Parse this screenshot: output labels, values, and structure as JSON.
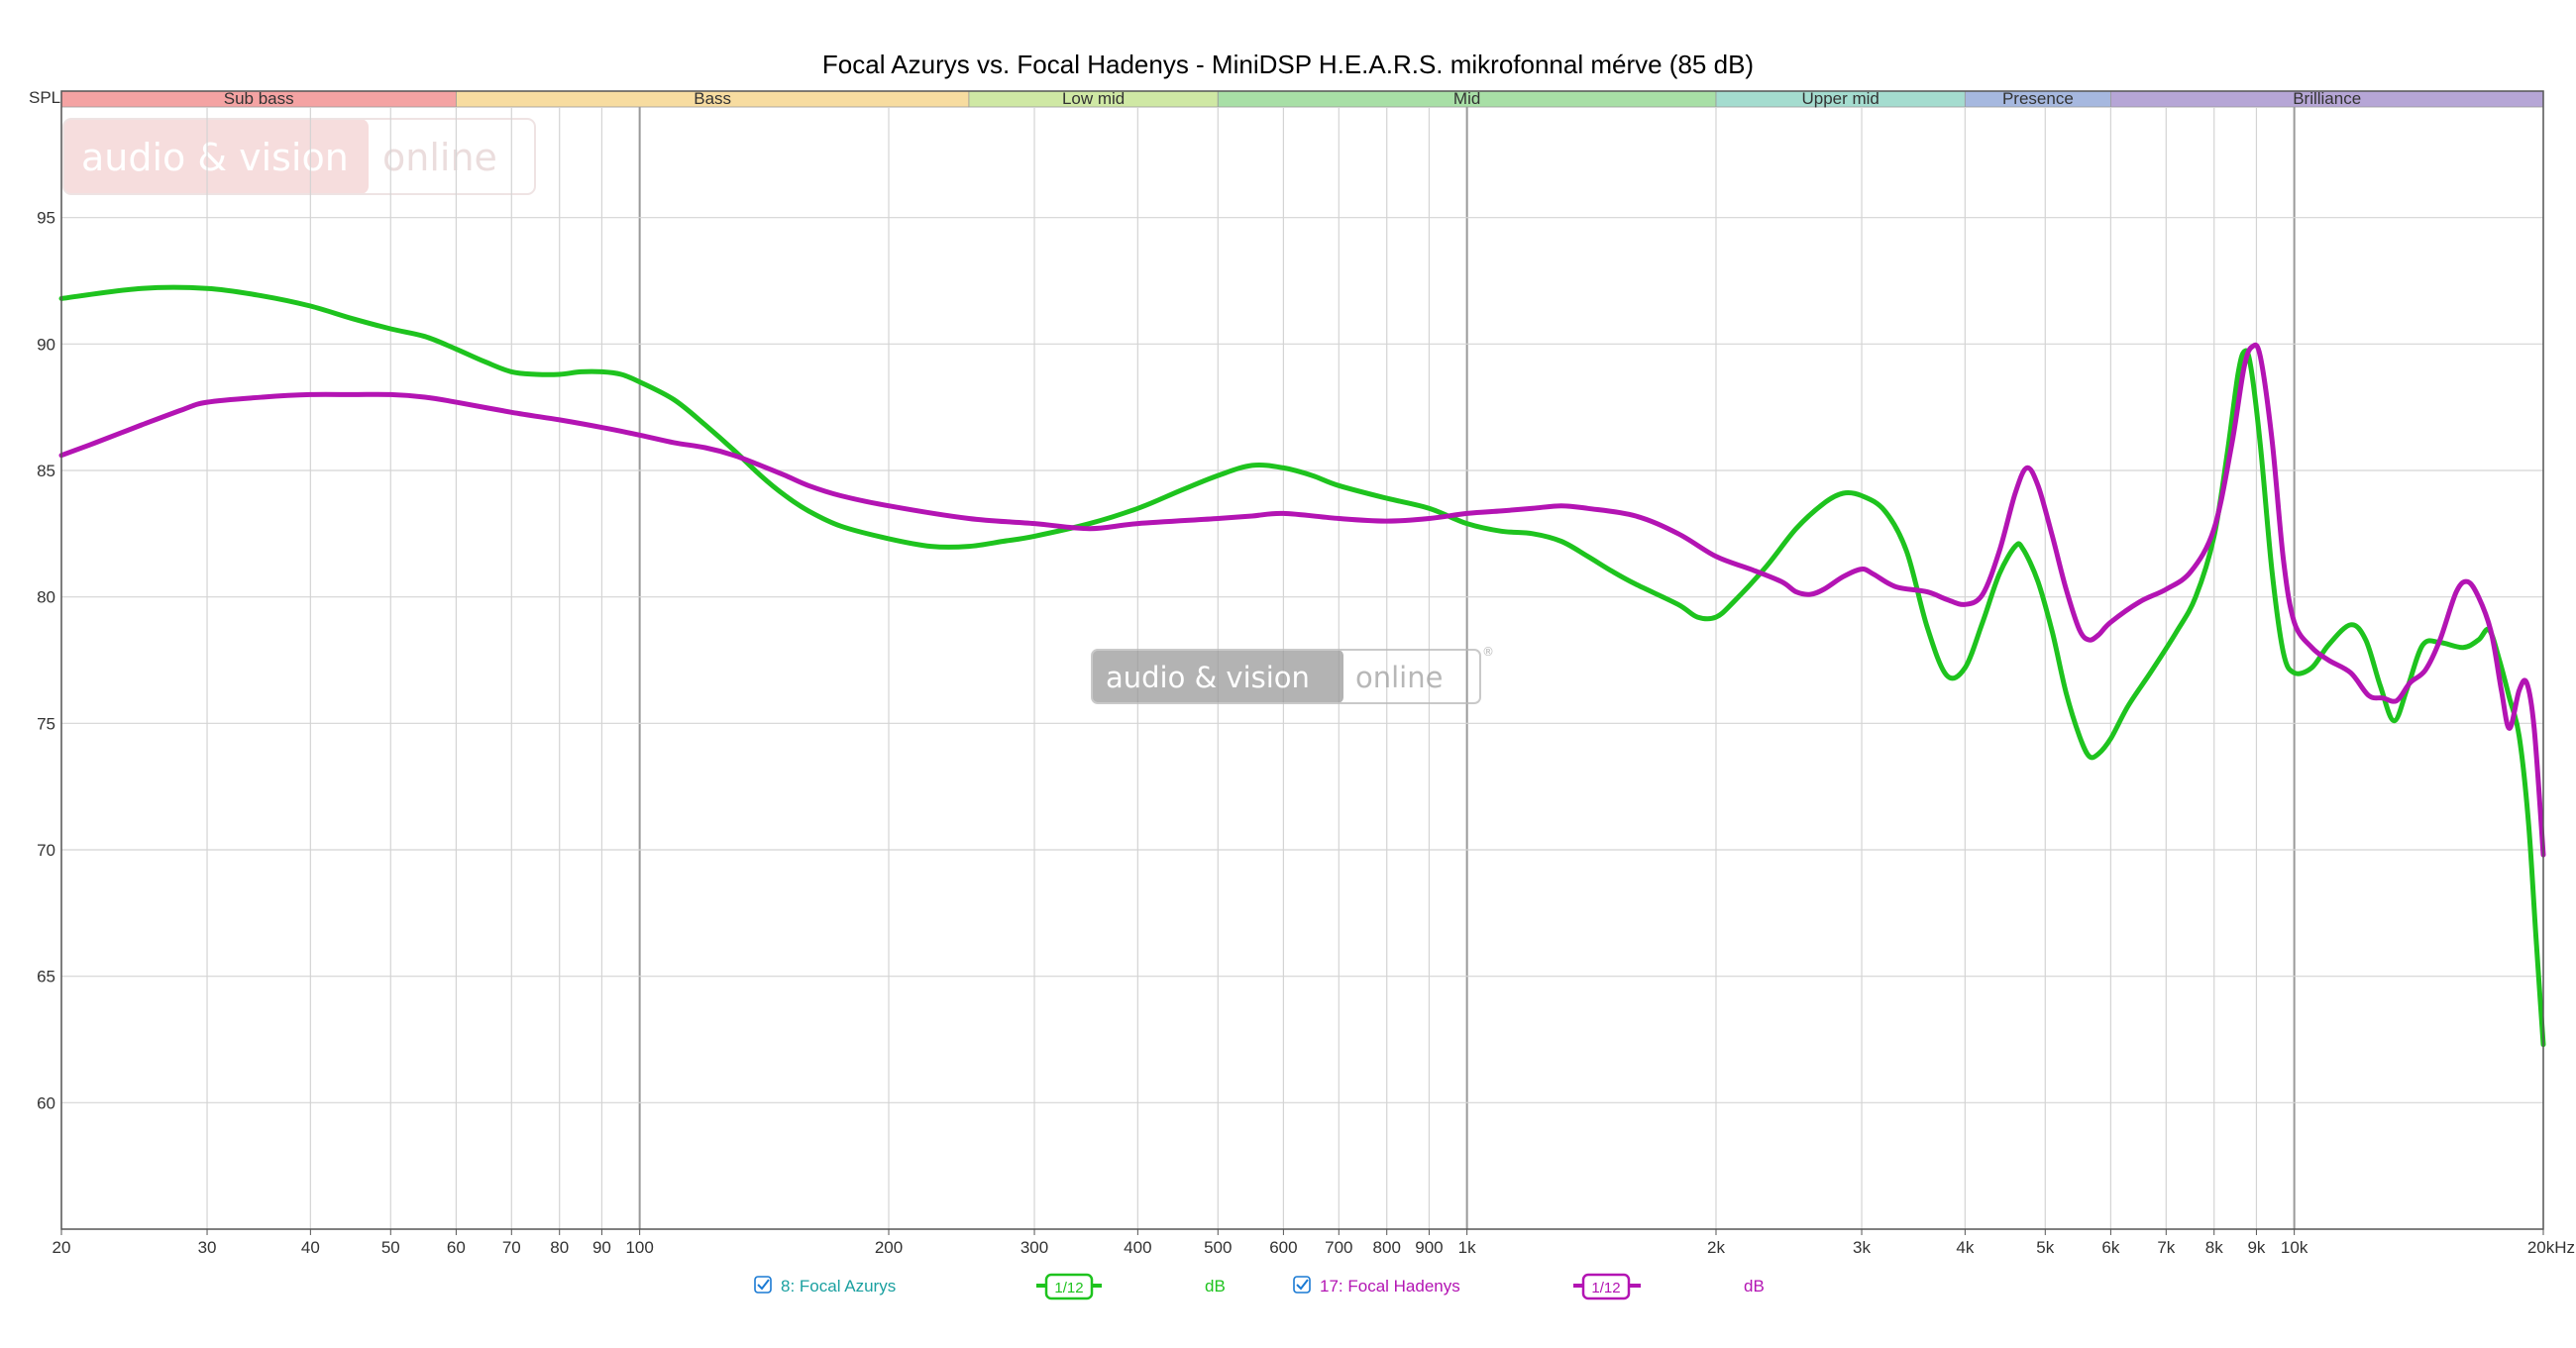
{
  "chart_data": {
    "type": "line",
    "title": "Focal Azurys vs. Focal Hadenys - MiniDSP H.E.A.R.S. mikrofonnal mérve (85 dB)",
    "ylabel": "SPL",
    "x_scale": "log",
    "xlim": [
      20,
      20000
    ],
    "ylim": [
      55,
      100
    ],
    "grid": true,
    "x_ticks": [
      {
        "v": 20,
        "label": "20"
      },
      {
        "v": 30,
        "label": "30"
      },
      {
        "v": 40,
        "label": "40"
      },
      {
        "v": 50,
        "label": "50"
      },
      {
        "v": 60,
        "label": "60"
      },
      {
        "v": 70,
        "label": "70"
      },
      {
        "v": 80,
        "label": "80"
      },
      {
        "v": 90,
        "label": "90"
      },
      {
        "v": 100,
        "label": "100"
      },
      {
        "v": 200,
        "label": "200"
      },
      {
        "v": 300,
        "label": "300"
      },
      {
        "v": 400,
        "label": "400"
      },
      {
        "v": 500,
        "label": "500"
      },
      {
        "v": 600,
        "label": "600"
      },
      {
        "v": 700,
        "label": "700"
      },
      {
        "v": 800,
        "label": "800"
      },
      {
        "v": 900,
        "label": "900"
      },
      {
        "v": 1000,
        "label": "1k"
      },
      {
        "v": 2000,
        "label": "2k"
      },
      {
        "v": 3000,
        "label": "3k"
      },
      {
        "v": 4000,
        "label": "4k"
      },
      {
        "v": 5000,
        "label": "5k"
      },
      {
        "v": 6000,
        "label": "6k"
      },
      {
        "v": 7000,
        "label": "7k"
      },
      {
        "v": 8000,
        "label": "8k"
      },
      {
        "v": 9000,
        "label": "9k"
      },
      {
        "v": 10000,
        "label": "10k"
      },
      {
        "v": 20000,
        "label": "20kHz"
      }
    ],
    "y_ticks": [
      {
        "v": 60,
        "label": "60"
      },
      {
        "v": 65,
        "label": "65"
      },
      {
        "v": 70,
        "label": "70"
      },
      {
        "v": 75,
        "label": "75"
      },
      {
        "v": 80,
        "label": "80"
      },
      {
        "v": 85,
        "label": "85"
      },
      {
        "v": 90,
        "label": "90"
      },
      {
        "v": 95,
        "label": "95"
      }
    ],
    "bands": [
      {
        "label": "Sub bass",
        "from": 20,
        "to": 60,
        "color": "#f4a3a3"
      },
      {
        "label": "Bass",
        "from": 60,
        "to": 250,
        "color": "#f7dca0"
      },
      {
        "label": "Low mid",
        "from": 250,
        "to": 500,
        "color": "#cfe8a4"
      },
      {
        "label": "Mid",
        "from": 500,
        "to": 2000,
        "color": "#a8dfa6"
      },
      {
        "label": "Upper mid",
        "from": 2000,
        "to": 4000,
        "color": "#a4dccf"
      },
      {
        "label": "Presence",
        "from": 4000,
        "to": 6000,
        "color": "#a6b8df"
      },
      {
        "label": "Brilliance",
        "from": 6000,
        "to": 20000,
        "color": "#b6a6d6"
      }
    ],
    "series": [
      {
        "name": "8: Focal Azurys",
        "color": "#1ec31e",
        "points": [
          [
            20,
            91.8
          ],
          [
            25,
            92.2
          ],
          [
            30,
            92.2
          ],
          [
            35,
            91.9
          ],
          [
            40,
            91.5
          ],
          [
            45,
            91.0
          ],
          [
            50,
            90.6
          ],
          [
            55,
            90.3
          ],
          [
            60,
            89.8
          ],
          [
            65,
            89.3
          ],
          [
            70,
            88.9
          ],
          [
            75,
            88.8
          ],
          [
            80,
            88.8
          ],
          [
            85,
            88.9
          ],
          [
            90,
            88.9
          ],
          [
            95,
            88.8
          ],
          [
            100,
            88.5
          ],
          [
            110,
            87.8
          ],
          [
            120,
            86.8
          ],
          [
            130,
            85.8
          ],
          [
            140,
            84.8
          ],
          [
            150,
            84.0
          ],
          [
            160,
            83.4
          ],
          [
            175,
            82.8
          ],
          [
            200,
            82.3
          ],
          [
            225,
            82.0
          ],
          [
            250,
            82.0
          ],
          [
            275,
            82.2
          ],
          [
            300,
            82.4
          ],
          [
            350,
            82.9
          ],
          [
            400,
            83.5
          ],
          [
            450,
            84.2
          ],
          [
            500,
            84.8
          ],
          [
            550,
            85.2
          ],
          [
            600,
            85.1
          ],
          [
            650,
            84.8
          ],
          [
            700,
            84.4
          ],
          [
            800,
            83.9
          ],
          [
            900,
            83.5
          ],
          [
            1000,
            82.9
          ],
          [
            1100,
            82.6
          ],
          [
            1200,
            82.5
          ],
          [
            1300,
            82.2
          ],
          [
            1400,
            81.6
          ],
          [
            1500,
            81.0
          ],
          [
            1600,
            80.5
          ],
          [
            1800,
            79.7
          ],
          [
            1900,
            79.2
          ],
          [
            2000,
            79.2
          ],
          [
            2100,
            79.8
          ],
          [
            2300,
            81.2
          ],
          [
            2500,
            82.7
          ],
          [
            2700,
            83.7
          ],
          [
            2850,
            84.1
          ],
          [
            3000,
            84.0
          ],
          [
            3200,
            83.4
          ],
          [
            3400,
            81.8
          ],
          [
            3600,
            78.8
          ],
          [
            3800,
            76.9
          ],
          [
            4000,
            77.2
          ],
          [
            4200,
            79.0
          ],
          [
            4400,
            80.9
          ],
          [
            4600,
            82.0
          ],
          [
            4700,
            81.9
          ],
          [
            4900,
            80.6
          ],
          [
            5100,
            78.6
          ],
          [
            5300,
            76.2
          ],
          [
            5500,
            74.5
          ],
          [
            5650,
            73.7
          ],
          [
            5800,
            73.8
          ],
          [
            6000,
            74.4
          ],
          [
            6300,
            75.7
          ],
          [
            6700,
            77.0
          ],
          [
            7200,
            78.6
          ],
          [
            7600,
            80.0
          ],
          [
            8000,
            82.4
          ],
          [
            8300,
            85.7
          ],
          [
            8550,
            88.8
          ],
          [
            8700,
            89.7
          ],
          [
            8850,
            89.2
          ],
          [
            9100,
            86.0
          ],
          [
            9400,
            81.0
          ],
          [
            9700,
            77.8
          ],
          [
            10000,
            77.0
          ],
          [
            10500,
            77.2
          ],
          [
            11000,
            78.1
          ],
          [
            11700,
            78.9
          ],
          [
            12200,
            78.3
          ],
          [
            12700,
            76.5
          ],
          [
            13200,
            75.1
          ],
          [
            13700,
            76.4
          ],
          [
            14300,
            78.1
          ],
          [
            15000,
            78.2
          ],
          [
            16000,
            78.0
          ],
          [
            16700,
            78.3
          ],
          [
            17200,
            78.7
          ],
          [
            17700,
            77.5
          ],
          [
            18200,
            76.0
          ],
          [
            18700,
            74.5
          ],
          [
            19200,
            71.0
          ],
          [
            19600,
            66.5
          ],
          [
            20000,
            62.3
          ]
        ]
      },
      {
        "name": "17: Focal Hadenys",
        "color": "#b314b3",
        "points": [
          [
            20,
            85.6
          ],
          [
            22,
            86.1
          ],
          [
            25,
            86.8
          ],
          [
            28,
            87.4
          ],
          [
            30,
            87.7
          ],
          [
            35,
            87.9
          ],
          [
            40,
            88.0
          ],
          [
            45,
            88.0
          ],
          [
            50,
            88.0
          ],
          [
            55,
            87.9
          ],
          [
            60,
            87.7
          ],
          [
            70,
            87.3
          ],
          [
            80,
            87.0
          ],
          [
            90,
            86.7
          ],
          [
            100,
            86.4
          ],
          [
            110,
            86.1
          ],
          [
            120,
            85.9
          ],
          [
            130,
            85.6
          ],
          [
            140,
            85.2
          ],
          [
            150,
            84.8
          ],
          [
            160,
            84.4
          ],
          [
            175,
            84.0
          ],
          [
            200,
            83.6
          ],
          [
            250,
            83.1
          ],
          [
            300,
            82.9
          ],
          [
            350,
            82.7
          ],
          [
            400,
            82.9
          ],
          [
            500,
            83.1
          ],
          [
            550,
            83.2
          ],
          [
            600,
            83.3
          ],
          [
            700,
            83.1
          ],
          [
            800,
            83.0
          ],
          [
            900,
            83.1
          ],
          [
            1000,
            83.3
          ],
          [
            1100,
            83.4
          ],
          [
            1200,
            83.5
          ],
          [
            1300,
            83.6
          ],
          [
            1400,
            83.5
          ],
          [
            1600,
            83.2
          ],
          [
            1800,
            82.5
          ],
          [
            2000,
            81.6
          ],
          [
            2200,
            81.1
          ],
          [
            2400,
            80.6
          ],
          [
            2500,
            80.2
          ],
          [
            2600,
            80.1
          ],
          [
            2700,
            80.3
          ],
          [
            2850,
            80.8
          ],
          [
            3000,
            81.1
          ],
          [
            3100,
            80.9
          ],
          [
            3300,
            80.4
          ],
          [
            3600,
            80.2
          ],
          [
            3800,
            79.9
          ],
          [
            4000,
            79.7
          ],
          [
            4200,
            80.1
          ],
          [
            4400,
            81.8
          ],
          [
            4600,
            84.1
          ],
          [
            4750,
            85.1
          ],
          [
            4900,
            84.4
          ],
          [
            5100,
            82.4
          ],
          [
            5300,
            80.3
          ],
          [
            5500,
            78.7
          ],
          [
            5650,
            78.3
          ],
          [
            5800,
            78.5
          ],
          [
            6000,
            79.0
          ],
          [
            6500,
            79.8
          ],
          [
            7000,
            80.3
          ],
          [
            7500,
            81.0
          ],
          [
            8000,
            82.7
          ],
          [
            8400,
            86.0
          ],
          [
            8700,
            89.1
          ],
          [
            8900,
            89.9
          ],
          [
            9100,
            89.5
          ],
          [
            9400,
            86.2
          ],
          [
            9700,
            81.5
          ],
          [
            10000,
            79.0
          ],
          [
            10500,
            78.0
          ],
          [
            11000,
            77.5
          ],
          [
            11700,
            77.0
          ],
          [
            12300,
            76.1
          ],
          [
            12800,
            76.0
          ],
          [
            13300,
            75.9
          ],
          [
            13800,
            76.6
          ],
          [
            14400,
            77.1
          ],
          [
            15000,
            78.3
          ],
          [
            15700,
            80.2
          ],
          [
            16200,
            80.6
          ],
          [
            16700,
            80.0
          ],
          [
            17300,
            78.6
          ],
          [
            17800,
            76.3
          ],
          [
            18200,
            74.8
          ],
          [
            18700,
            76.3
          ],
          [
            19100,
            76.6
          ],
          [
            19500,
            74.8
          ],
          [
            20000,
            69.8
          ]
        ]
      }
    ],
    "legend": {
      "placement": "bottom",
      "smoothing_label": "1/12",
      "unit_label": "dB"
    }
  },
  "watermark": {
    "word1": "audio & vision",
    "word2": "online",
    "mark": "®"
  }
}
